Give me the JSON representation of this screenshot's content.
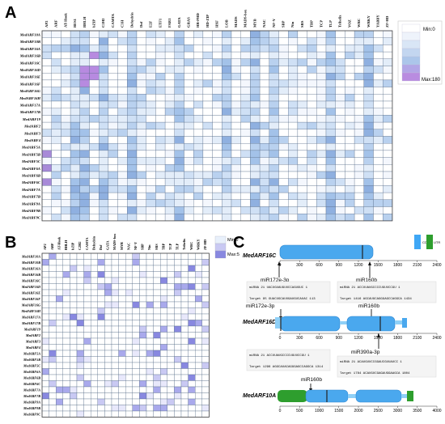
{
  "panels": {
    "a": {
      "letter": "A",
      "columns": [
        "AP2",
        "ARF",
        "AT-Hook",
        "BES1",
        "BHLH",
        "bZIP",
        "C2H2",
        "CAMTA",
        "C3H",
        "Dehydrin",
        "Dof",
        "E2F",
        "ETF1",
        "FAR1",
        "GATA",
        "GRAS",
        "HB-PHD",
        "HD-ZIP",
        "HSF",
        "LOB",
        "MADS",
        "MADS-box",
        "MYB",
        "NAC",
        "NF-Y",
        "SBP",
        "Nin",
        "SRS",
        "TBP",
        "TCP",
        "TLP",
        "Trihelix",
        "VOZ",
        "WRC",
        "WRKY",
        "YABBY",
        "ZF-HD"
      ],
      "rows": [
        "MedARF10A",
        "MedARF10B",
        "MedARF16A",
        "MedARF16B",
        "MedARF16C",
        "MedARF16D",
        "MedARF16E",
        "MedARF16F",
        "MedARF16G",
        "MedARF16H",
        "MedARF17A",
        "MedARF17B",
        "MedARF19",
        "MedARF2",
        "MedARF3",
        "MedARF4",
        "MedARF5A",
        "MedARF5B",
        "MedARF5C",
        "MedARF6A",
        "MedARF6B",
        "MedARF6C",
        "MedARF7A",
        "MedARF7B",
        "MedARF9A",
        "MedARF9B",
        "MedARF9C"
      ],
      "legend": {
        "min": "Min:0",
        "max": "Max:180"
      },
      "colors": [
        "#ffffff",
        "#f4f7fd",
        "#e3edf9",
        "#cfe0f5",
        "#b9d1ef",
        "#a3c2e9",
        "#8fb0e0",
        "#a88ad8",
        "#b78ae0"
      ]
    },
    "b": {
      "letter": "B",
      "columns": [
        "AP2",
        "ARF",
        "AT-Hook",
        "BHLH",
        "bZIP",
        "C2H2",
        "CAMTA",
        "Dehydrin",
        "Dof",
        "GATA",
        "MADS-box",
        "MYB",
        "NAC",
        "NF-Y",
        "SBP",
        "Nin",
        "SRS",
        "TBP",
        "TCP",
        "TLP",
        "Trihelix",
        "WRC",
        "WRKY",
        "ZF-HD"
      ],
      "rows": [
        "MedARF10A",
        "MedARF10B",
        "MedARF16A",
        "MedARF16B",
        "MedARF16C",
        "MedARF16D",
        "MedARF16E",
        "MedARF16F",
        "MedARF16G",
        "MedARF16H",
        "MedARF17A",
        "MedARF17B",
        "MedARF19",
        "MedARF2",
        "MedARF3",
        "MedARF4",
        "MedARF5A",
        "MedARF5B",
        "MedARF5C",
        "MedARF6A",
        "MedARF6B",
        "MedARF6C",
        "MedARF7A",
        "MedARF7B",
        "MedARF9A",
        "MedARF9B",
        "MedARF9C"
      ],
      "legend": {
        "min": "Min:0",
        "max": "Max:5"
      },
      "colors": [
        "#ffffff",
        "#e8e8fb",
        "#c9c9f3",
        "#a9a9ec",
        "#8888e0"
      ]
    },
    "c": {
      "letter": "C",
      "legend": {
        "cds": "CDS",
        "utr": "UTR"
      },
      "genes": [
        {
          "name": "MedARF16C",
          "ticks": [
            "0",
            "300",
            "600",
            "900",
            "1200",
            "1500",
            "1800",
            "2100",
            "2400"
          ],
          "labels": [
            "miR172e-3p",
            "miR160b"
          ],
          "alignments": [
            {
              "mirna": "miRNA    21 UACUGUAUGUUCCAGUGUC 1",
              "target": "Target   95 GUACUGCAUUGAUGUCAUAC 113"
            },
            {
              "mirna": "miRNA    21 ACCUUAUGCCCCUGUUCCGU 1",
              "target": "Target   1416 AGCAUGCAGGGAGCCAGGCA 1434"
            }
          ]
        },
        {
          "name": "MedARF16D",
          "ticks": [
            "0",
            "300",
            "600",
            "900",
            "1200",
            "1500",
            "1800",
            "2100",
            "2400"
          ],
          "labels": [
            "miR172e-3p",
            "miR160b",
            "miR390a-3p"
          ],
          "alignments": [
            {
              "mirna": "miRNA    21 ACCUUAUGCCCCUGUUCCGU 1",
              "target": "Target   1296 AGGCAUACAGGGAGCCAGGCA 1314"
            },
            {
              "mirna": "miRNA    21 ACAUGUUCCGGAUCGUUAUCC 1",
              "target": "Target   1784 ACAUGUCGAGAUGGAAGCA 1804"
            }
          ]
        },
        {
          "name": "MedARF10A",
          "ticks": [
            "0",
            "500",
            "1000",
            "1500",
            "2000",
            "2500",
            "3000",
            "3500",
            "4000"
          ],
          "labels": [
            "miR160b"
          ],
          "alignments": []
        }
      ]
    }
  }
}
